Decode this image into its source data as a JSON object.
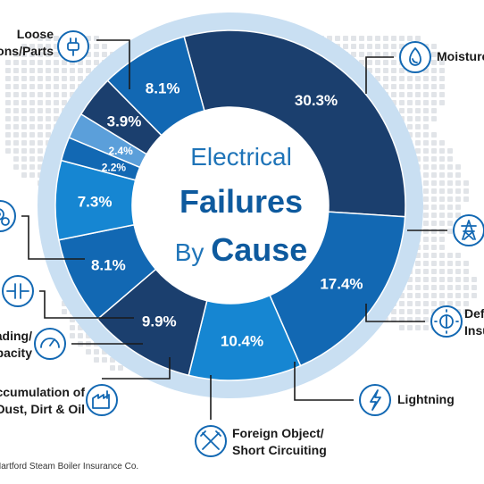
{
  "chart_data": {
    "type": "pie",
    "title_lines": [
      "Electrical",
      "Failures",
      "By Cause"
    ],
    "slices": [
      {
        "label": "Loose Connections/Parts",
        "display": [
          "Loose",
          "Connections/Parts"
        ],
        "value": 30.3,
        "color": "#1b3f6e",
        "icon": "plug-icon"
      },
      {
        "label": "Moisture",
        "display": [
          "Moisture"
        ],
        "value": 17.4,
        "color": "#1268b3",
        "icon": "water-drop-icon"
      },
      {
        "label": "",
        "display": [],
        "value": 10.4,
        "color": "#1686d2",
        "icon": "transmission-tower-icon"
      },
      {
        "label": "Defective Insulation",
        "display": [
          "Defective",
          "Insulation"
        ],
        "value": 9.9,
        "color": "#1b3f6e",
        "icon": "insulation-icon"
      },
      {
        "label": "Lightning",
        "display": [
          "Lightning"
        ],
        "value": 8.1,
        "color": "#1268b3",
        "icon": "lightning-icon"
      },
      {
        "label": "Foreign Object/ Short Circuiting",
        "display": [
          "Foreign Object/",
          "Short Circuiting"
        ],
        "value": 7.3,
        "color": "#1686d2",
        "icon": "wrench-screwdriver-icon"
      },
      {
        "label": "Accumulation of Dust, Dirt & Oil",
        "display": [
          "Accumulation of",
          "Dust, Dirt & Oil"
        ],
        "value": 2.2,
        "color": "#1268b3",
        "icon": "factory-icon"
      },
      {
        "label": "Overloading/ Overcapacity",
        "display": [
          "Overloading/",
          "Overcapacity"
        ],
        "value": 2.4,
        "color": "#5b9fda",
        "icon": "gauge-icon"
      },
      {
        "label": "",
        "display": [],
        "value": 3.9,
        "color": "#1b3f6e",
        "icon": "capacitor-icon"
      },
      {
        "label": "",
        "display": [],
        "value": 8.1,
        "color": "#1268b3",
        "icon": "gears-icon"
      }
    ],
    "ring_color": "#c9dff2",
    "icon_color": "#1268b3"
  },
  "source": "Hartford Steam Boiler Insurance Co."
}
